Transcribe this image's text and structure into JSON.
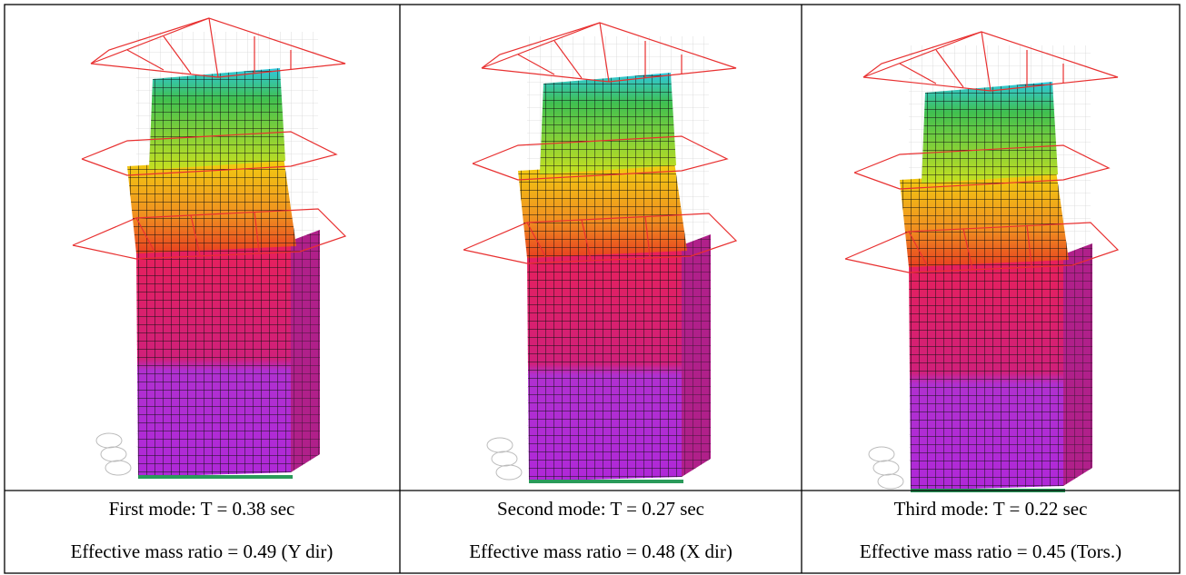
{
  "panels": [
    {
      "mode": "First mode: T = 0.38 sec",
      "mass": "Effective mass ratio = 0.49 (Y dir)"
    },
    {
      "mode": "Second mode: T = 0.27 sec",
      "mass": "Effective mass ratio = 0.48 (X dir)"
    },
    {
      "mode": "Third mode: T = 0.22 sec",
      "mass": "Effective mass ratio = 0.45 (Tors.)"
    }
  ]
}
